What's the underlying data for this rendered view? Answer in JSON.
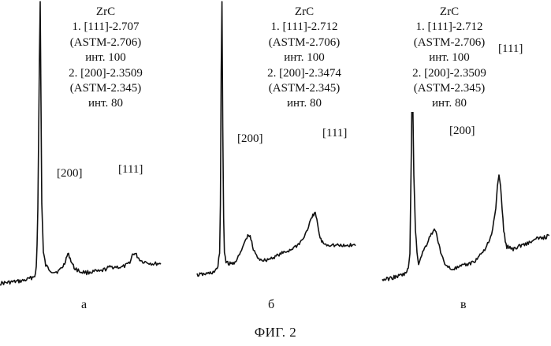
{
  "figure_caption": "ФИГ. 2",
  "chart_data": [
    {
      "type": "line",
      "panel_label": "а",
      "annotation": [
        "ZrC",
        "1. [111]-2.707",
        "(ASTM-2.706)",
        "инт. 100",
        "2. [200]-2.3509",
        "(ASTM-2.345)",
        "инт. 80"
      ],
      "peak_labels": [
        "[200]",
        "[111]"
      ],
      "x": [
        0,
        8,
        16,
        24,
        30,
        36,
        40,
        43,
        45,
        46,
        47,
        48,
        49,
        50,
        51,
        52,
        53,
        55,
        58,
        62,
        66,
        70,
        74,
        78,
        81,
        84,
        86,
        88,
        91,
        94,
        98,
        102,
        106,
        110,
        114,
        118,
        122,
        126,
        130,
        134,
        138,
        142,
        146,
        150,
        154,
        158,
        162,
        166,
        168,
        170,
        172,
        174,
        176,
        180,
        184,
        188,
        192,
        196,
        200,
        204
      ],
      "values": [
        7,
        8,
        9,
        10,
        11,
        13,
        15,
        17,
        20,
        30,
        60,
        110,
        210,
        320,
        400,
        260,
        120,
        50,
        32,
        27,
        24,
        23,
        24,
        28,
        33,
        42,
        48,
        45,
        36,
        29,
        26,
        23,
        23,
        22,
        23,
        23,
        24,
        23,
        25,
        27,
        29,
        30,
        30,
        30,
        29,
        31,
        33,
        40,
        47,
        49,
        48,
        45,
        42,
        38,
        37,
        36,
        35,
        34,
        35,
        34
      ],
      "ylim": [
        0,
        400
      ]
    },
    {
      "type": "line",
      "panel_label": "б",
      "annotation": [
        "ZrC",
        "1. [111]-2.712",
        "(ASTM-2.706)",
        "инт. 100",
        "2. [200]-2.3474",
        "(ASTM-2.345)",
        "инт. 80"
      ],
      "peak_labels": [
        "[200]",
        "[111]"
      ],
      "x": [
        0,
        8,
        14,
        20,
        24,
        26,
        28,
        29,
        30,
        31,
        32,
        33,
        34,
        36,
        38,
        40,
        43,
        46,
        50,
        54,
        58,
        62,
        64,
        66,
        68,
        70,
        74,
        78,
        84,
        90,
        96,
        102,
        108,
        114,
        120,
        126,
        132,
        136,
        140,
        143,
        146,
        148,
        150,
        152,
        154,
        156,
        160,
        164,
        168,
        172,
        176,
        180,
        186,
        192,
        197
      ],
      "values": [
        8,
        9,
        10,
        12,
        15,
        20,
        40,
        110,
        300,
        400,
        220,
        90,
        40,
        28,
        25,
        24,
        24,
        26,
        31,
        39,
        52,
        62,
        65,
        62,
        55,
        44,
        35,
        31,
        29,
        31,
        34,
        37,
        40,
        43,
        47,
        52,
        60,
        70,
        82,
        90,
        98,
        92,
        80,
        66,
        58,
        55,
        52,
        51,
        52,
        50,
        51,
        49,
        50,
        51,
        50
      ],
      "ylim": [
        0,
        400
      ]
    },
    {
      "type": "line",
      "panel_label": "в",
      "annotation": [
        "ZrC",
        "1. [111]-2.712",
        "(ASTM-2.706)",
        "инт. 100",
        "2. [200]-2.3509",
        "(ASTM-2.345)",
        "инт. 80"
      ],
      "peak_labels": [
        "[200]",
        "[111]"
      ],
      "x": [
        0,
        8,
        16,
        24,
        30,
        33,
        35,
        37,
        38,
        40,
        42,
        44,
        46,
        50,
        56,
        62,
        66,
        68,
        70,
        72,
        74,
        78,
        82,
        86,
        90,
        94,
        100,
        106,
        112,
        118,
        124,
        130,
        136,
        140,
        144,
        146,
        148,
        150,
        152,
        154,
        156,
        158,
        162,
        166,
        172,
        178,
        184,
        190,
        196,
        202,
        208,
        212
      ],
      "values": [
        10,
        12,
        15,
        18,
        22,
        30,
        60,
        260,
        400,
        200,
        100,
        60,
        40,
        56,
        74,
        94,
        100,
        96,
        86,
        72,
        58,
        44,
        35,
        31,
        30,
        31,
        34,
        37,
        40,
        45,
        55,
        66,
        80,
        100,
        140,
        180,
        200,
        180,
        140,
        100,
        80,
        70,
        68,
        66,
        70,
        74,
        76,
        80,
        84,
        86,
        88,
        90
      ],
      "ylim": [
        0,
        400
      ]
    }
  ]
}
